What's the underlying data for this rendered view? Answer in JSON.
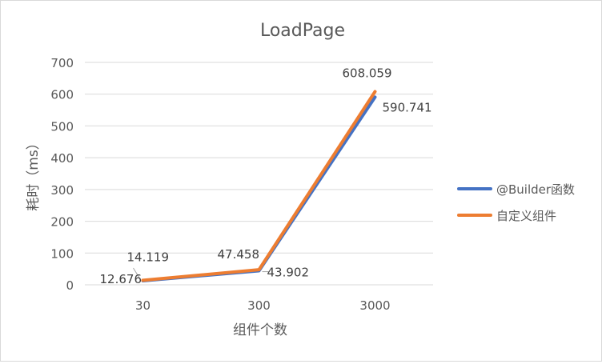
{
  "chart_data": {
    "type": "line",
    "title": "LoadPage",
    "xlabel": "组件个数",
    "ylabel": "耗时（ms）",
    "categories": [
      "30",
      "300",
      "3000"
    ],
    "ylim": [
      0,
      700
    ],
    "yticks": [
      0,
      100,
      200,
      300,
      400,
      500,
      600,
      700
    ],
    "grid": true,
    "legend_position": "right",
    "series": [
      {
        "name": "@Builder函数",
        "color": "#4472C4",
        "values": [
          12.676,
          43.902,
          590.741
        ],
        "labels": [
          "12.676",
          "43.902",
          "590.741"
        ]
      },
      {
        "name": "自定义组件",
        "color": "#ED7D31",
        "values": [
          14.119,
          47.458,
          608.059
        ],
        "labels": [
          "14.119",
          "47.458",
          "608.059"
        ]
      }
    ]
  }
}
